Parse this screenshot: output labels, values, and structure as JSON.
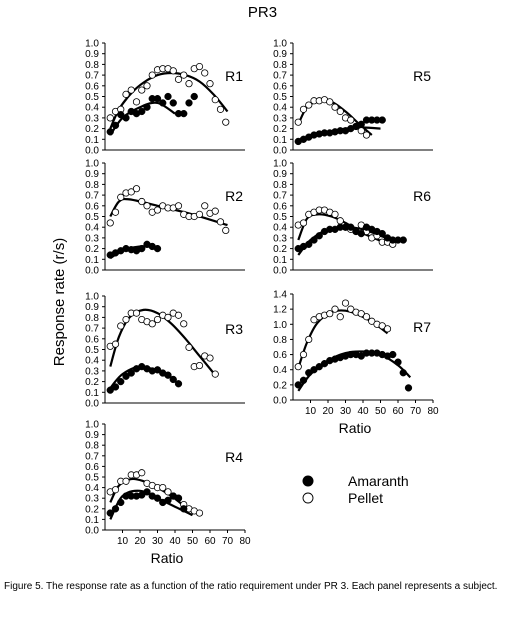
{
  "figure": {
    "title": "PR3",
    "ylabel": "Response rate (r/s)",
    "legend": [
      {
        "label": "Amaranth",
        "marker": "filled"
      },
      {
        "label": "Pellet",
        "marker": "open"
      }
    ],
    "caption": "Figure 5. The response rate as a function of the ratio requirement under PR 3. Each panel represents a subject."
  },
  "chart_data": [
    {
      "type": "scatter",
      "panel": "R1",
      "title": "R1",
      "xlabel": "",
      "ylabel": "",
      "xlim": [
        0,
        80
      ],
      "ylim": [
        0,
        1.0
      ],
      "yticks": [
        "0.0",
        "0.1",
        "0.2",
        "0.3",
        "0.4",
        "0.5",
        "0.6",
        "0.7",
        "0.8",
        "0.9",
        "1.0"
      ],
      "xticks": [],
      "series": [
        {
          "name": "Amaranth",
          "x": [
            3,
            6,
            9,
            12,
            15,
            18,
            21,
            24,
            27,
            30,
            33,
            36,
            39,
            42,
            45,
            48,
            51
          ],
          "y": [
            0.17,
            0.23,
            0.33,
            0.3,
            0.36,
            0.34,
            0.36,
            0.4,
            0.48,
            0.48,
            0.44,
            0.5,
            0.44,
            0.34,
            0.34,
            0.44,
            0.5
          ]
        },
        {
          "name": "Pellet",
          "x": [
            3,
            6,
            9,
            12,
            15,
            18,
            21,
            24,
            27,
            30,
            33,
            36,
            39,
            42,
            45,
            48,
            51,
            54,
            57,
            60,
            63,
            66,
            69
          ],
          "y": [
            0.3,
            0.36,
            0.38,
            0.52,
            0.56,
            0.45,
            0.56,
            0.6,
            0.7,
            0.75,
            0.76,
            0.76,
            0.74,
            0.66,
            0.7,
            0.62,
            0.76,
            0.78,
            0.72,
            0.62,
            0.47,
            0.38,
            0.26
          ]
        }
      ],
      "fits": [
        {
          "x": [
            3,
            10,
            20,
            30,
            40
          ],
          "y": [
            0.14,
            0.3,
            0.4,
            0.44,
            0.34
          ]
        },
        {
          "x": [
            3,
            8,
            15,
            22,
            30,
            38,
            46,
            54,
            62,
            70
          ],
          "y": [
            0.2,
            0.38,
            0.53,
            0.63,
            0.7,
            0.72,
            0.7,
            0.64,
            0.52,
            0.36
          ]
        }
      ]
    },
    {
      "type": "scatter",
      "panel": "R2",
      "title": "R2",
      "xlabel": "",
      "ylabel": "",
      "xlim": [
        0,
        80
      ],
      "ylim": [
        0,
        1.0
      ],
      "yticks": [
        "0.0",
        "0.1",
        "0.2",
        "0.3",
        "0.4",
        "0.5",
        "0.6",
        "0.7",
        "0.8",
        "0.9",
        "1.0"
      ],
      "xticks": [],
      "series": [
        {
          "name": "Amaranth",
          "x": [
            3,
            6,
            9,
            12,
            15,
            18,
            21,
            24,
            27,
            30
          ],
          "y": [
            0.14,
            0.16,
            0.18,
            0.2,
            0.19,
            0.18,
            0.2,
            0.24,
            0.22,
            0.2
          ]
        },
        {
          "name": "Pellet",
          "x": [
            3,
            6,
            9,
            12,
            15,
            18,
            21,
            24,
            27,
            30,
            33,
            36,
            39,
            42,
            45,
            48,
            51,
            54,
            57,
            60,
            63,
            66,
            69
          ],
          "y": [
            0.44,
            0.54,
            0.68,
            0.72,
            0.73,
            0.76,
            0.64,
            0.6,
            0.54,
            0.56,
            0.6,
            0.58,
            0.58,
            0.6,
            0.52,
            0.5,
            0.5,
            0.52,
            0.6,
            0.53,
            0.55,
            0.45,
            0.37
          ]
        }
      ],
      "fits": [
        {
          "x": [
            3,
            10,
            20,
            31
          ],
          "y": [
            0.11,
            0.18,
            0.22,
            0.21
          ]
        },
        {
          "x": [
            3,
            8,
            14,
            30,
            50,
            70
          ],
          "y": [
            0.5,
            0.64,
            0.66,
            0.6,
            0.52,
            0.42
          ]
        }
      ]
    },
    {
      "type": "scatter",
      "panel": "R3",
      "title": "R3",
      "xlabel": "",
      "ylabel": "",
      "xlim": [
        0,
        80
      ],
      "ylim": [
        0,
        1.0
      ],
      "yticks": [
        "0.0",
        "0.1",
        "0.2",
        "0.3",
        "0.4",
        "0.5",
        "0.6",
        "0.7",
        "0.8",
        "0.9",
        "1.0"
      ],
      "xticks": [],
      "series": [
        {
          "name": "Amaranth",
          "x": [
            3,
            6,
            9,
            12,
            15,
            18,
            21,
            24,
            27,
            30,
            33,
            36,
            39,
            42
          ],
          "y": [
            0.12,
            0.15,
            0.2,
            0.25,
            0.28,
            0.32,
            0.34,
            0.32,
            0.3,
            0.31,
            0.28,
            0.26,
            0.22,
            0.18
          ]
        },
        {
          "name": "Pellet",
          "x": [
            3,
            6,
            9,
            12,
            15,
            18,
            21,
            24,
            27,
            30,
            33,
            36,
            39,
            42,
            45,
            48,
            51,
            54,
            57,
            60,
            63
          ],
          "y": [
            0.53,
            0.55,
            0.72,
            0.78,
            0.84,
            0.84,
            0.78,
            0.76,
            0.74,
            0.78,
            0.82,
            0.8,
            0.84,
            0.82,
            0.74,
            0.52,
            0.34,
            0.35,
            0.44,
            0.42,
            0.27
          ]
        }
      ],
      "fits": [
        {
          "x": [
            3,
            10,
            20,
            30,
            36
          ],
          "y": [
            0.14,
            0.27,
            0.34,
            0.3,
            0.24
          ]
        },
        {
          "x": [
            3,
            8,
            14,
            22,
            30,
            38,
            46,
            54,
            62
          ],
          "y": [
            0.34,
            0.62,
            0.8,
            0.87,
            0.84,
            0.74,
            0.6,
            0.44,
            0.28
          ]
        }
      ]
    },
    {
      "type": "scatter",
      "panel": "R4",
      "title": "R4",
      "xlabel": "Ratio",
      "ylabel": "",
      "xlim": [
        0,
        80
      ],
      "ylim": [
        0,
        1.0
      ],
      "yticks": [
        "0.0",
        "0.1",
        "0.2",
        "0.3",
        "0.4",
        "0.5",
        "0.6",
        "0.7",
        "0.8",
        "0.9",
        "1.0"
      ],
      "xticks": [
        "10",
        "20",
        "30",
        "40",
        "50",
        "60",
        "70",
        "80"
      ],
      "series": [
        {
          "name": "Amaranth",
          "x": [
            3,
            6,
            9,
            12,
            15,
            18,
            21,
            24,
            27,
            30,
            33,
            36,
            39,
            42,
            45
          ],
          "y": [
            0.16,
            0.2,
            0.26,
            0.32,
            0.32,
            0.32,
            0.33,
            0.36,
            0.32,
            0.3,
            0.26,
            0.28,
            0.32,
            0.3,
            0.2
          ]
        },
        {
          "name": "Pellet",
          "x": [
            3,
            6,
            9,
            12,
            15,
            18,
            21,
            24,
            27,
            30,
            33,
            36,
            39,
            42,
            45,
            48,
            51,
            54
          ],
          "y": [
            0.36,
            0.38,
            0.46,
            0.46,
            0.52,
            0.52,
            0.54,
            0.44,
            0.42,
            0.4,
            0.4,
            0.36,
            0.32,
            0.3,
            0.24,
            0.2,
            0.18,
            0.16
          ]
        }
      ],
      "fits": [
        {
          "x": [
            3,
            10,
            20,
            30,
            40,
            50
          ],
          "y": [
            0.1,
            0.32,
            0.37,
            0.3,
            0.22,
            0.14
          ]
        },
        {
          "x": [
            3,
            8,
            15,
            22,
            30,
            38,
            46,
            55
          ],
          "y": [
            0.26,
            0.42,
            0.48,
            0.46,
            0.4,
            0.32,
            0.22,
            0.14
          ]
        }
      ]
    },
    {
      "type": "scatter",
      "panel": "R5",
      "title": "R5",
      "xlabel": "",
      "ylabel": "",
      "xlim": [
        0,
        80
      ],
      "ylim": [
        0,
        1.0
      ],
      "yticks": [
        "0.0",
        "0.1",
        "0.2",
        "0.3",
        "0.4",
        "0.5",
        "0.6",
        "0.7",
        "0.8",
        "0.9",
        "1.0"
      ],
      "xticks": [],
      "series": [
        {
          "name": "Amaranth",
          "x": [
            3,
            6,
            9,
            12,
            15,
            18,
            21,
            24,
            27,
            30,
            33,
            36,
            39,
            42,
            45,
            48,
            51
          ],
          "y": [
            0.08,
            0.1,
            0.12,
            0.14,
            0.15,
            0.16,
            0.16,
            0.17,
            0.18,
            0.18,
            0.2,
            0.22,
            0.24,
            0.28,
            0.28,
            0.28,
            0.28
          ]
        },
        {
          "name": "Pellet",
          "x": [
            3,
            6,
            9,
            12,
            15,
            18,
            21,
            24,
            27,
            30,
            33,
            36,
            39,
            42
          ],
          "y": [
            0.26,
            0.38,
            0.42,
            0.46,
            0.46,
            0.47,
            0.45,
            0.4,
            0.36,
            0.3,
            0.28,
            0.22,
            0.18,
            0.14
          ]
        }
      ],
      "fits": [
        {
          "x": [
            3,
            10,
            20,
            30,
            40,
            50
          ],
          "y": [
            0.06,
            0.14,
            0.17,
            0.2,
            0.21,
            0.2
          ]
        },
        {
          "x": [
            3,
            8,
            15,
            22,
            30,
            38,
            45
          ],
          "y": [
            0.24,
            0.4,
            0.46,
            0.45,
            0.36,
            0.24,
            0.14
          ]
        }
      ]
    },
    {
      "type": "scatter",
      "panel": "R6",
      "title": "R6",
      "xlabel": "",
      "ylabel": "",
      "xlim": [
        0,
        80
      ],
      "ylim": [
        0,
        1.0
      ],
      "yticks": [
        "0.0",
        "0.1",
        "0.2",
        "0.3",
        "0.4",
        "0.5",
        "0.6",
        "0.7",
        "0.8",
        "0.9",
        "1.0"
      ],
      "xticks": [],
      "series": [
        {
          "name": "Amaranth",
          "x": [
            3,
            6,
            9,
            12,
            15,
            18,
            21,
            24,
            27,
            30,
            33,
            36,
            39,
            42,
            45,
            48,
            51,
            54,
            57,
            60,
            63
          ],
          "y": [
            0.2,
            0.22,
            0.24,
            0.28,
            0.32,
            0.36,
            0.38,
            0.38,
            0.4,
            0.4,
            0.4,
            0.36,
            0.34,
            0.4,
            0.38,
            0.36,
            0.34,
            0.3,
            0.28,
            0.28,
            0.28
          ]
        },
        {
          "name": "Pellet",
          "x": [
            3,
            6,
            9,
            12,
            15,
            18,
            21,
            24,
            27,
            30,
            33,
            36,
            39,
            42,
            45,
            48,
            51,
            54,
            57
          ],
          "y": [
            0.42,
            0.44,
            0.52,
            0.54,
            0.56,
            0.56,
            0.54,
            0.52,
            0.46,
            0.4,
            0.38,
            0.36,
            0.42,
            0.36,
            0.3,
            0.32,
            0.26,
            0.26,
            0.24
          ]
        }
      ],
      "fits": [
        {
          "x": [
            3,
            10,
            20,
            30,
            40,
            50,
            60
          ],
          "y": [
            0.14,
            0.28,
            0.38,
            0.4,
            0.38,
            0.32,
            0.26
          ]
        },
        {
          "x": [
            3,
            8,
            14,
            22,
            30,
            38,
            46,
            55
          ],
          "y": [
            0.28,
            0.48,
            0.52,
            0.5,
            0.44,
            0.36,
            0.3,
            0.24
          ]
        }
      ]
    },
    {
      "type": "scatter",
      "panel": "R7",
      "title": "R7",
      "xlabel": "Ratio",
      "ylabel": "",
      "xlim": [
        0,
        80
      ],
      "ylim": [
        0,
        1.4
      ],
      "yticks": [
        "0.0",
        "0.2",
        "0.4",
        "0.6",
        "0.8",
        "1.0",
        "1.2",
        "1.4"
      ],
      "xticks": [
        "10",
        "20",
        "30",
        "40",
        "50",
        "60",
        "70",
        "80"
      ],
      "series": [
        {
          "name": "Amaranth",
          "x": [
            3,
            6,
            9,
            12,
            15,
            18,
            21,
            24,
            27,
            30,
            33,
            36,
            39,
            42,
            45,
            48,
            51,
            54,
            57,
            60,
            63,
            66
          ],
          "y": [
            0.2,
            0.26,
            0.36,
            0.4,
            0.44,
            0.48,
            0.52,
            0.54,
            0.56,
            0.58,
            0.6,
            0.6,
            0.58,
            0.62,
            0.62,
            0.62,
            0.6,
            0.58,
            0.6,
            0.5,
            0.36,
            0.16
          ]
        },
        {
          "name": "Pellet",
          "x": [
            3,
            6,
            9,
            12,
            15,
            18,
            21,
            24,
            27,
            30,
            33,
            36,
            39,
            42,
            45,
            48,
            51,
            54
          ],
          "y": [
            0.44,
            0.6,
            0.8,
            1.06,
            1.1,
            1.12,
            1.14,
            1.2,
            1.1,
            1.28,
            1.2,
            1.16,
            1.14,
            1.1,
            1.04,
            1.0,
            0.98,
            0.94
          ]
        }
      ],
      "fits": [
        {
          "x": [
            3,
            10,
            20,
            30,
            40,
            50,
            60,
            67
          ],
          "y": [
            0.12,
            0.34,
            0.52,
            0.62,
            0.64,
            0.6,
            0.46,
            0.3
          ]
        },
        {
          "x": [
            3,
            8,
            14,
            22,
            30,
            38,
            46,
            54
          ],
          "y": [
            0.42,
            0.76,
            1.02,
            1.16,
            1.18,
            1.12,
            1.02,
            0.88
          ]
        }
      ]
    }
  ]
}
